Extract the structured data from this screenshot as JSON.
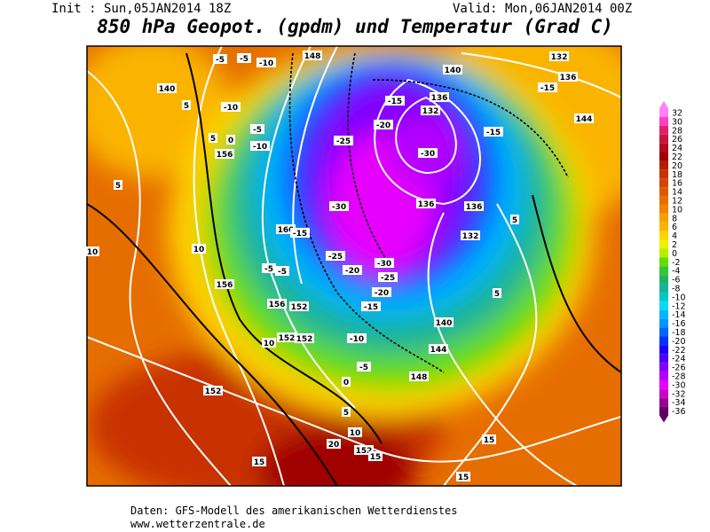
{
  "header": {
    "init": "Init : Sun,05JAN2014 18Z",
    "valid": "Valid: Mon,06JAN2014 00Z",
    "title": "850 hPa Geopot. (gpdm) und Temperatur (Grad C)"
  },
  "legend": {
    "labels": [
      32,
      30,
      28,
      26,
      24,
      22,
      20,
      18,
      16,
      14,
      12,
      10,
      8,
      6,
      4,
      2,
      0,
      -2,
      -4,
      -6,
      -8,
      -10,
      -12,
      -14,
      -16,
      -18,
      -20,
      -22,
      -24,
      -26,
      -28,
      -30,
      -32,
      -34,
      -36
    ],
    "colors": [
      "#ff80ff",
      "#ff40c0",
      "#e0206a",
      "#c8143c",
      "#b40a1e",
      "#a00000",
      "#b41e00",
      "#c83200",
      "#d24600",
      "#dc5a00",
      "#e66e00",
      "#f08200",
      "#f5a000",
      "#fab400",
      "#ffd200",
      "#f0f000",
      "#b4f000",
      "#64dc00",
      "#32c832",
      "#1eb464",
      "#14b496",
      "#00c8c8",
      "#00dcf0",
      "#00b4ff",
      "#0096ff",
      "#0064ff",
      "#0032ff",
      "#1e00ff",
      "#5000ff",
      "#8200ff",
      "#b400ff",
      "#e600ff",
      "#c800c8",
      "#960096",
      "#640064"
    ]
  },
  "map": {
    "labels": [
      "148",
      "132",
      "136",
      "140",
      "136",
      "132",
      "-15",
      "-20",
      "-30",
      "-15",
      "144",
      "-15",
      "-25",
      "-30",
      "136",
      "136",
      "132",
      "160",
      "-15",
      "-25",
      "-30",
      "-20",
      "-25",
      "-20",
      "-15",
      "152",
      "156",
      "156",
      "-5",
      "-5",
      "10",
      "140",
      "144",
      "-10",
      "-5",
      "152",
      "152",
      "148",
      "10",
      "152",
      "0",
      "5",
      "10",
      "152",
      "15",
      "20",
      "15",
      "15",
      "15",
      "5",
      "5",
      "156",
      "-10",
      "-5",
      "5",
      "5",
      "0",
      "5",
      "10",
      "-5",
      "-5",
      "-10",
      "-10",
      "140"
    ]
  },
  "footer": {
    "source": "Daten: GFS-Modell des amerikanischen Wetterdienstes",
    "url": "www.wetterzentrale.de"
  }
}
